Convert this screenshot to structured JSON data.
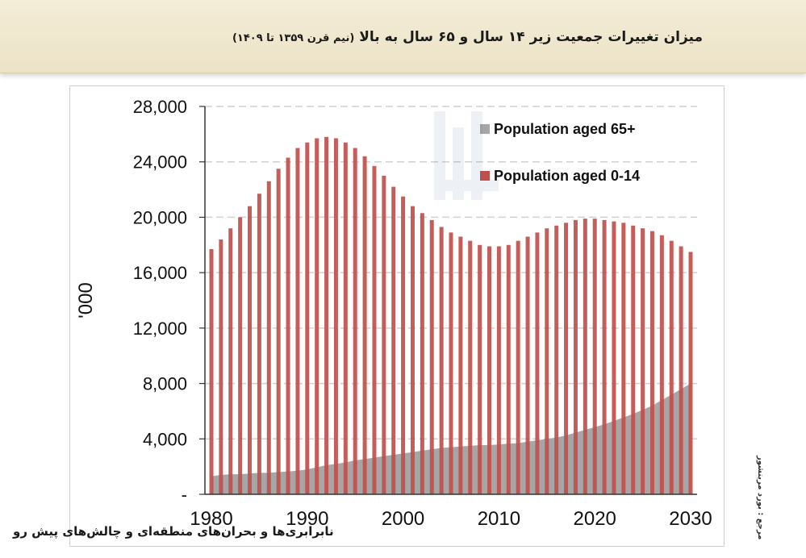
{
  "title": {
    "main": "میزان تغییرات جمعیت زیر ۱۴ سال و ۶۵ سال به بالا",
    "sub": "(نیم قرن ۱۳۵۹ تا ۱۴۰۹)"
  },
  "source_note": "مرجع : بورد مرینشور",
  "footer_text": "نابرابری‌ها و بحران‌های منطقه‌ای و چالش‌های پیش رو",
  "colors": {
    "bar": "#c0504d",
    "area": "#a6a6a6",
    "grid": "#d0d0d0",
    "banner": "#f1ead2"
  },
  "chart_data": {
    "type": "bar",
    "title": "",
    "xlabel": "",
    "ylabel": "'000",
    "ylim": [
      0,
      28000
    ],
    "yticks": [
      0,
      4000,
      8000,
      12000,
      16000,
      20000,
      24000,
      28000
    ],
    "ytick_labels": [
      "-",
      "4,000",
      "8,000",
      "12,000",
      "16,000",
      "20,000",
      "24,000",
      "28,000"
    ],
    "xticks": [
      1980,
      1990,
      2000,
      2010,
      2020,
      2030
    ],
    "xtick_labels": [
      "1980",
      "1990",
      "2000",
      "2010",
      "2020",
      "2030"
    ],
    "grid": true,
    "legend_position": "top-right",
    "x": [
      1980,
      1981,
      1982,
      1983,
      1984,
      1985,
      1986,
      1987,
      1988,
      1989,
      1990,
      1991,
      1992,
      1993,
      1994,
      1995,
      1996,
      1997,
      1998,
      1999,
      2000,
      2001,
      2002,
      2003,
      2004,
      2005,
      2006,
      2007,
      2008,
      2009,
      2010,
      2011,
      2012,
      2013,
      2014,
      2015,
      2016,
      2017,
      2018,
      2019,
      2020,
      2021,
      2022,
      2023,
      2024,
      2025,
      2026,
      2027,
      2028,
      2029,
      2030
    ],
    "series": [
      {
        "name": "Population aged 65+",
        "type": "area",
        "values": [
          1300,
          1400,
          1450,
          1450,
          1500,
          1550,
          1550,
          1600,
          1650,
          1700,
          1800,
          1950,
          2100,
          2200,
          2300,
          2450,
          2550,
          2650,
          2750,
          2850,
          2950,
          3050,
          3150,
          3250,
          3350,
          3400,
          3450,
          3500,
          3550,
          3550,
          3600,
          3650,
          3700,
          3800,
          3900,
          4000,
          4100,
          4250,
          4450,
          4650,
          4850,
          5050,
          5300,
          5550,
          5800,
          6100,
          6400,
          6800,
          7200,
          7600,
          8000
        ]
      },
      {
        "name": "Population aged 0-14",
        "type": "bar",
        "values": [
          17700,
          18400,
          19200,
          20000,
          20800,
          21700,
          22600,
          23500,
          24300,
          25000,
          25400,
          25700,
          25800,
          25700,
          25400,
          25000,
          24400,
          23700,
          23000,
          22200,
          21500,
          20800,
          20300,
          19800,
          19300,
          18900,
          18600,
          18300,
          18000,
          17900,
          17900,
          18000,
          18300,
          18600,
          18900,
          19200,
          19400,
          19600,
          19800,
          19900,
          19900,
          19800,
          19700,
          19600,
          19400,
          19200,
          19000,
          18700,
          18300,
          17900,
          17500
        ]
      }
    ]
  }
}
